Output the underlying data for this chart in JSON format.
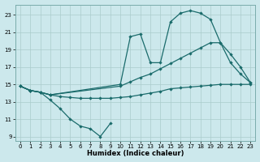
{
  "xlabel": "Humidex (Indice chaleur)",
  "background_color": "#cce8ec",
  "grid_color": "#aacccc",
  "line_color": "#1a6b6b",
  "xlim": [
    -0.5,
    23.5
  ],
  "ylim": [
    8.5,
    24.2
  ],
  "yticks": [
    9,
    11,
    13,
    15,
    17,
    19,
    21,
    23
  ],
  "xticks": [
    0,
    1,
    2,
    3,
    4,
    5,
    6,
    7,
    8,
    9,
    10,
    11,
    12,
    13,
    14,
    15,
    16,
    17,
    18,
    19,
    20,
    21,
    22,
    23
  ],
  "curve_wavy_x": [
    0,
    1,
    2,
    3,
    4,
    5,
    6,
    7,
    8,
    9
  ],
  "curve_wavy_y": [
    14.8,
    14.3,
    14.1,
    13.2,
    12.2,
    11.0,
    10.2,
    9.9,
    9.0,
    10.5
  ],
  "curve_flat_x": [
    0,
    1,
    2,
    3,
    4,
    5,
    6,
    7,
    8,
    9,
    10,
    11,
    12,
    13,
    14,
    15,
    16,
    17,
    18,
    19,
    20,
    21,
    22,
    23
  ],
  "curve_flat_y": [
    14.8,
    14.3,
    14.1,
    13.8,
    13.6,
    13.5,
    13.4,
    13.4,
    13.4,
    13.4,
    13.5,
    13.6,
    13.8,
    14.0,
    14.2,
    14.5,
    14.6,
    14.7,
    14.8,
    14.9,
    15.0,
    15.0,
    15.0,
    15.0
  ],
  "curve_mid_x": [
    0,
    1,
    2,
    3,
    10,
    11,
    12,
    13,
    14,
    15,
    16,
    17,
    18,
    19,
    20,
    21,
    22,
    23
  ],
  "curve_mid_y": [
    14.8,
    14.3,
    14.1,
    13.8,
    14.8,
    15.3,
    15.8,
    16.2,
    16.8,
    17.4,
    18.0,
    18.6,
    19.2,
    19.8,
    19.8,
    18.5,
    17.0,
    15.2
  ],
  "curve_top_x": [
    0,
    1,
    2,
    3,
    10,
    11,
    12,
    13,
    14,
    15,
    16,
    17,
    18,
    19,
    20,
    21,
    22,
    23
  ],
  "curve_top_y": [
    14.8,
    14.3,
    14.1,
    13.8,
    15.0,
    20.5,
    20.8,
    17.5,
    17.5,
    22.2,
    23.2,
    23.5,
    23.2,
    22.5,
    19.8,
    17.5,
    16.2,
    15.2
  ]
}
